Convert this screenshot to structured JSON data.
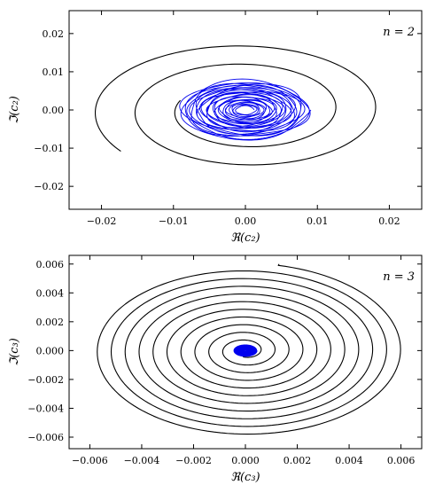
{
  "chart_data": [
    {
      "type": "line",
      "panel_label": "n = 2",
      "xlabel": "ℜ(c₂)",
      "ylabel": "ℑ(c₂)",
      "xlim": [
        -0.0245,
        0.0245
      ],
      "ylim": [
        -0.026,
        0.026
      ],
      "xticks": [
        -0.02,
        -0.01,
        0.0,
        0.01,
        0.02
      ],
      "xtick_labels": [
        "−0.02",
        "−0.01",
        "0.00",
        "0.01",
        "0.02"
      ],
      "yticks": [
        -0.02,
        -0.01,
        0.0,
        0.01,
        0.02
      ],
      "ytick_labels": [
        "−0.02",
        "−0.01",
        "0.00",
        "0.01",
        "0.02"
      ],
      "grid": false,
      "series": [
        {
          "color": "#000000",
          "spiral": {
            "start_angle_deg": 216,
            "r_start": 0.0214,
            "r_end": 0.0095,
            "turns": 2.15,
            "aspect": 0.86
          }
        },
        {
          "color": "#0000ee",
          "spiral": {
            "start_angle_deg": 0,
            "r_start": 0.0091,
            "r_end": 0.0012,
            "turns": 26,
            "aspect": 0.84,
            "jitter": 0.09
          }
        }
      ]
    },
    {
      "type": "line",
      "panel_label": "n = 3",
      "xlabel": "ℜ(c₃)",
      "ylabel": "ℑ(c₃)",
      "xlim": [
        -0.0068,
        0.0068
      ],
      "ylim": [
        -0.0068,
        0.0066
      ],
      "xticks": [
        -0.006,
        -0.004,
        -0.002,
        0.0,
        0.002,
        0.004,
        0.006
      ],
      "xtick_labels": [
        "−0.006",
        "−0.004",
        "−0.002",
        "0.000",
        "0.002",
        "0.004",
        "0.006"
      ],
      "yticks": [
        -0.006,
        -0.004,
        -0.002,
        0.0,
        0.002,
        0.004,
        0.006
      ],
      "ytick_labels": [
        "−0.006",
        "−0.004",
        "−0.002",
        "0.000",
        "0.002",
        "0.004",
        "0.006"
      ],
      "grid": false,
      "series": [
        {
          "color": "#000000",
          "spiral": {
            "start_angle_deg": 78,
            "r_start": 0.0061,
            "r_end": 0.00045,
            "turns": 10.5,
            "aspect": 0.99,
            "start_point": [
              0.0013,
              0.006
            ]
          }
        },
        {
          "color": "#0000ee",
          "spiral": {
            "start_angle_deg": 0,
            "r_start": 0.00045,
            "r_end": 3e-05,
            "turns": 30,
            "aspect": 0.9
          }
        }
      ]
    }
  ]
}
